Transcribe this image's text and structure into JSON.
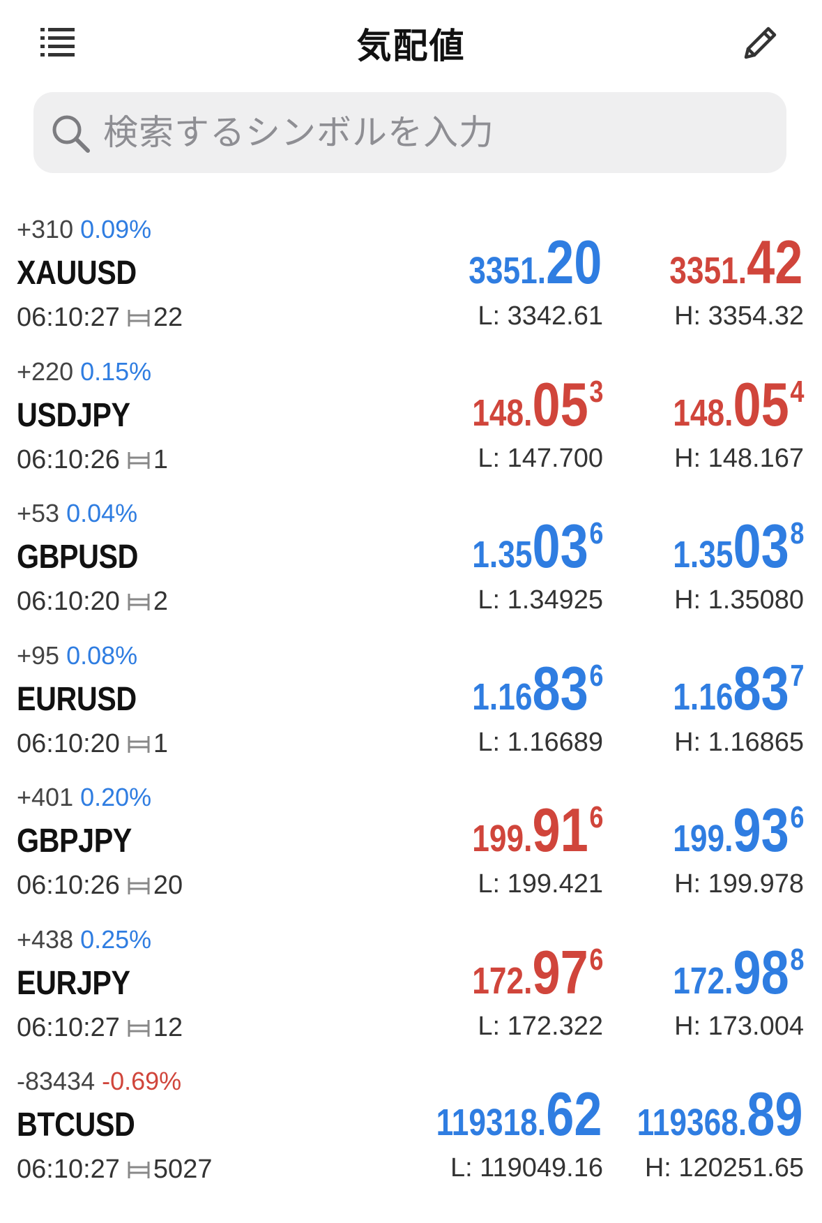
{
  "header": {
    "title": "気配値",
    "menu_icon": "list-icon",
    "edit_icon": "pencil-icon"
  },
  "search": {
    "placeholder": "検索するシンボルを入力",
    "icon": "search-icon"
  },
  "colors": {
    "up": "#2f7de1",
    "down": "#d0453b"
  },
  "quotes": [
    {
      "symbol": "XAUUSD",
      "change": "+310",
      "change_pct": "0.09%",
      "change_dir": "up",
      "time": "06:10:27",
      "spread": "22",
      "bid": {
        "small": "3351.",
        "big": "20",
        "sup": "",
        "dir": "up"
      },
      "ask": {
        "small": "3351.",
        "big": "42",
        "sup": "",
        "dir": "down"
      },
      "low": "L: 3342.61",
      "high": "H: 3354.32"
    },
    {
      "symbol": "USDJPY",
      "change": "+220",
      "change_pct": "0.15%",
      "change_dir": "up",
      "time": "06:10:26",
      "spread": "1",
      "bid": {
        "small": "148.",
        "big": "05",
        "sup": "3",
        "dir": "down"
      },
      "ask": {
        "small": "148.",
        "big": "05",
        "sup": "4",
        "dir": "down"
      },
      "low": "L: 147.700",
      "high": "H: 148.167"
    },
    {
      "symbol": "GBPUSD",
      "change": "+53",
      "change_pct": "0.04%",
      "change_dir": "up",
      "time": "06:10:20",
      "spread": "2",
      "bid": {
        "small": "1.35",
        "big": "03",
        "sup": "6",
        "dir": "up"
      },
      "ask": {
        "small": "1.35",
        "big": "03",
        "sup": "8",
        "dir": "up"
      },
      "low": "L: 1.34925",
      "high": "H: 1.35080"
    },
    {
      "symbol": "EURUSD",
      "change": "+95",
      "change_pct": "0.08%",
      "change_dir": "up",
      "time": "06:10:20",
      "spread": "1",
      "bid": {
        "small": "1.16",
        "big": "83",
        "sup": "6",
        "dir": "up"
      },
      "ask": {
        "small": "1.16",
        "big": "83",
        "sup": "7",
        "dir": "up"
      },
      "low": "L: 1.16689",
      "high": "H: 1.16865"
    },
    {
      "symbol": "GBPJPY",
      "change": "+401",
      "change_pct": "0.20%",
      "change_dir": "up",
      "time": "06:10:26",
      "spread": "20",
      "bid": {
        "small": "199.",
        "big": "91",
        "sup": "6",
        "dir": "down"
      },
      "ask": {
        "small": "199.",
        "big": "93",
        "sup": "6",
        "dir": "up"
      },
      "low": "L: 199.421",
      "high": "H: 199.978"
    },
    {
      "symbol": "EURJPY",
      "change": "+438",
      "change_pct": "0.25%",
      "change_dir": "up",
      "time": "06:10:27",
      "spread": "12",
      "bid": {
        "small": "172.",
        "big": "97",
        "sup": "6",
        "dir": "down"
      },
      "ask": {
        "small": "172.",
        "big": "98",
        "sup": "8",
        "dir": "up"
      },
      "low": "L: 172.322",
      "high": "H: 173.004"
    },
    {
      "symbol": "BTCUSD",
      "change": "-83434",
      "change_pct": "-0.69%",
      "change_dir": "down",
      "time": "06:10:27",
      "spread": "5027",
      "bid": {
        "small": "119318.",
        "big": "62",
        "sup": "",
        "dir": "up"
      },
      "ask": {
        "small": "119368.",
        "big": "89",
        "sup": "",
        "dir": "up"
      },
      "low": "L: 119049.16",
      "high": "H: 120251.65"
    }
  ]
}
